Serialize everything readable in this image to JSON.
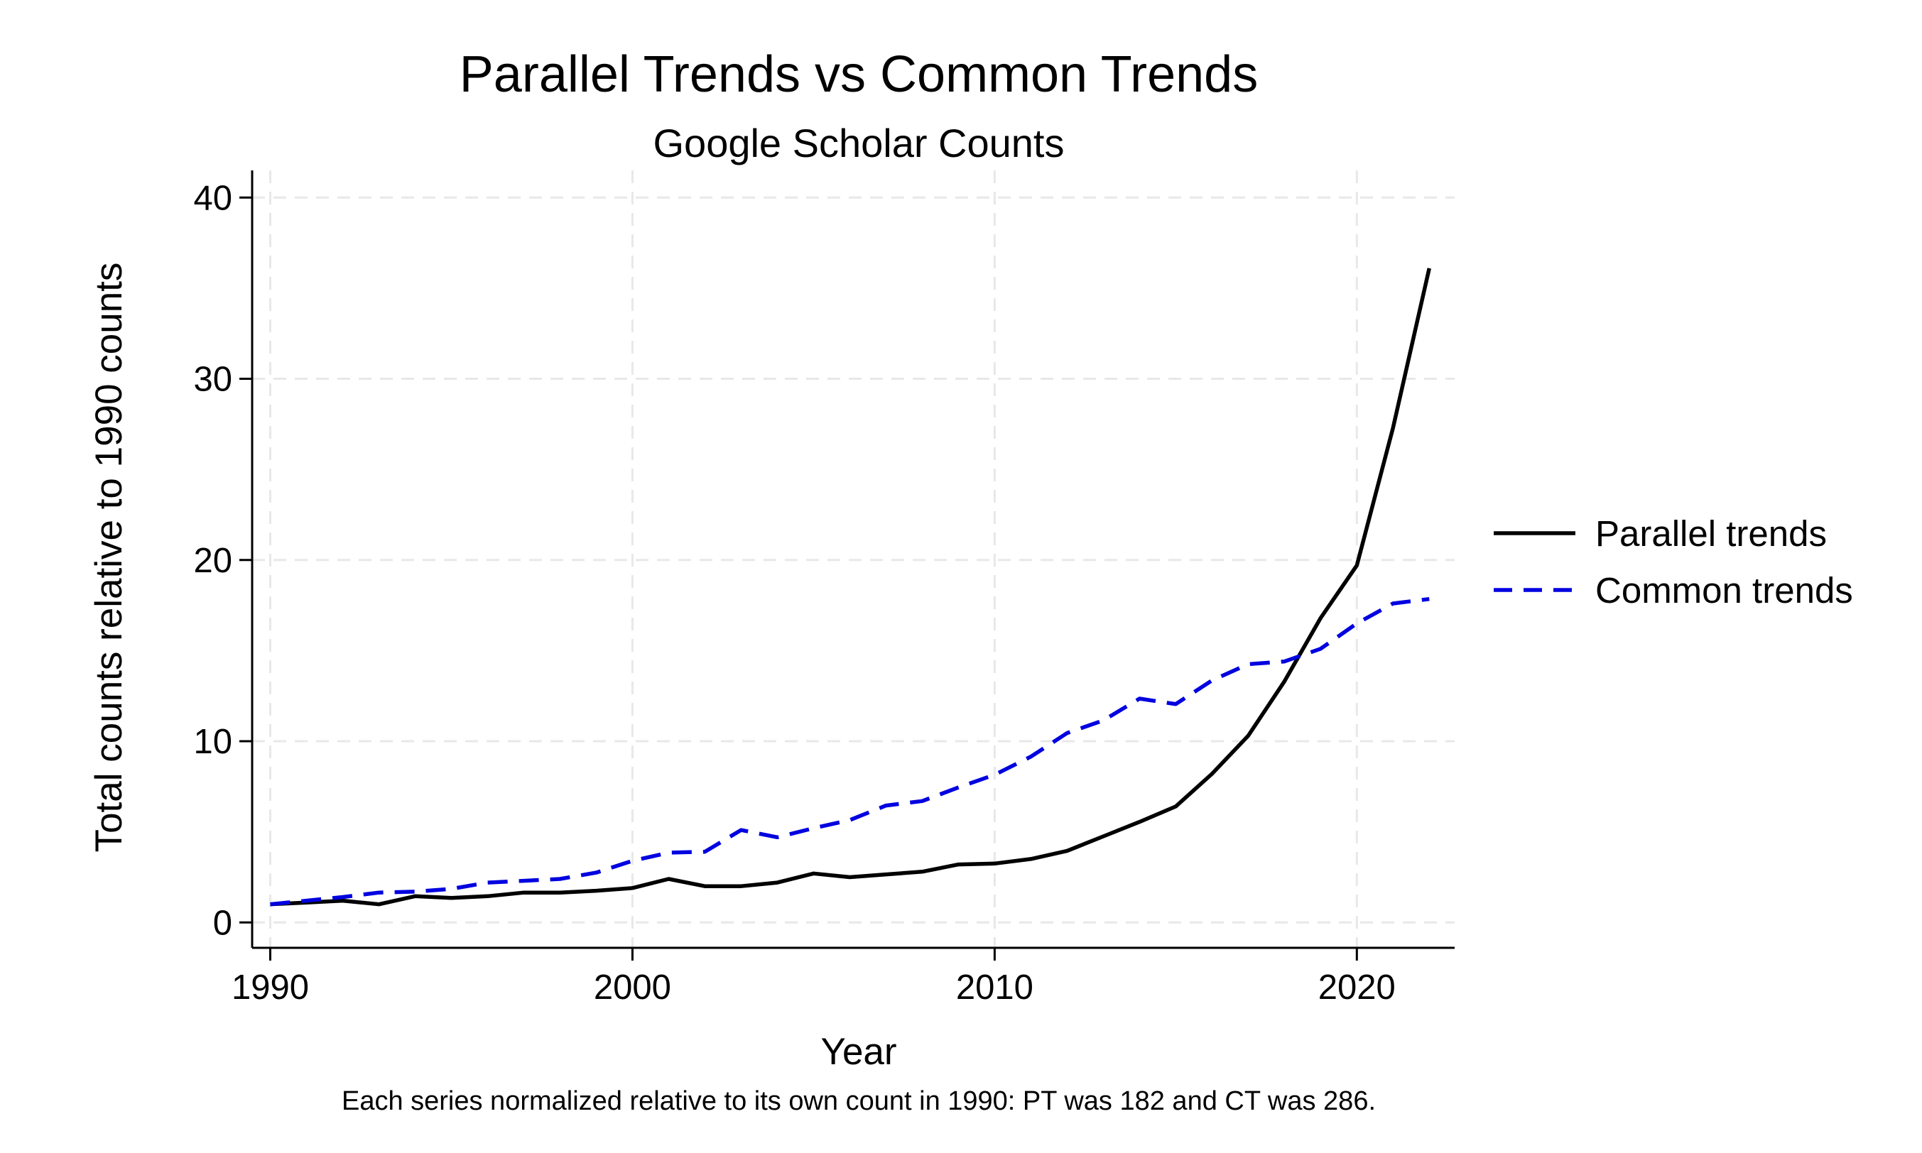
{
  "chart_data": {
    "type": "line",
    "title": "Parallel Trends vs Common Trends",
    "subtitle": "Google Scholar Counts",
    "xlabel": "Year",
    "ylabel": "Total counts relative to 1990 counts",
    "note": "Each series normalized relative to its own count in 1990: PT was 182 and CT was 286.",
    "xlim": [
      1989.5,
      2022.7
    ],
    "ylim": [
      -1.4,
      41.5
    ],
    "xticks": [
      1990,
      2000,
      2010,
      2020
    ],
    "yticks": [
      0,
      10,
      20,
      30,
      40
    ],
    "grid": true,
    "legend_position": "right",
    "x": [
      1990,
      1991,
      1992,
      1993,
      1994,
      1995,
      1996,
      1997,
      1998,
      1999,
      2000,
      2001,
      2002,
      2003,
      2004,
      2005,
      2006,
      2007,
      2008,
      2009,
      2010,
      2011,
      2012,
      2013,
      2014,
      2015,
      2016,
      2017,
      2018,
      2019,
      2020,
      2021,
      2022
    ],
    "series": [
      {
        "name": "Parallel trends",
        "color": "#000000",
        "dash": "solid",
        "values": [
          1.0,
          1.1,
          1.2,
          1.0,
          1.45,
          1.35,
          1.45,
          1.65,
          1.65,
          1.75,
          1.9,
          2.4,
          2.0,
          2.0,
          2.2,
          2.7,
          2.5,
          2.65,
          2.8,
          3.2,
          3.25,
          3.5,
          3.95,
          4.75,
          5.55,
          6.4,
          8.2,
          10.3,
          13.3,
          16.8,
          19.7,
          27.3,
          36.1
        ]
      },
      {
        "name": "Common trends",
        "color": "#0000e0",
        "dash": "dashed",
        "values": [
          1.0,
          1.2,
          1.4,
          1.65,
          1.7,
          1.85,
          2.2,
          2.3,
          2.4,
          2.75,
          3.4,
          3.85,
          3.9,
          5.1,
          4.7,
          5.2,
          5.65,
          6.45,
          6.7,
          7.45,
          8.15,
          9.15,
          10.45,
          11.15,
          12.35,
          12.05,
          13.35,
          14.25,
          14.4,
          15.1,
          16.5,
          17.6,
          17.85
        ]
      }
    ]
  }
}
